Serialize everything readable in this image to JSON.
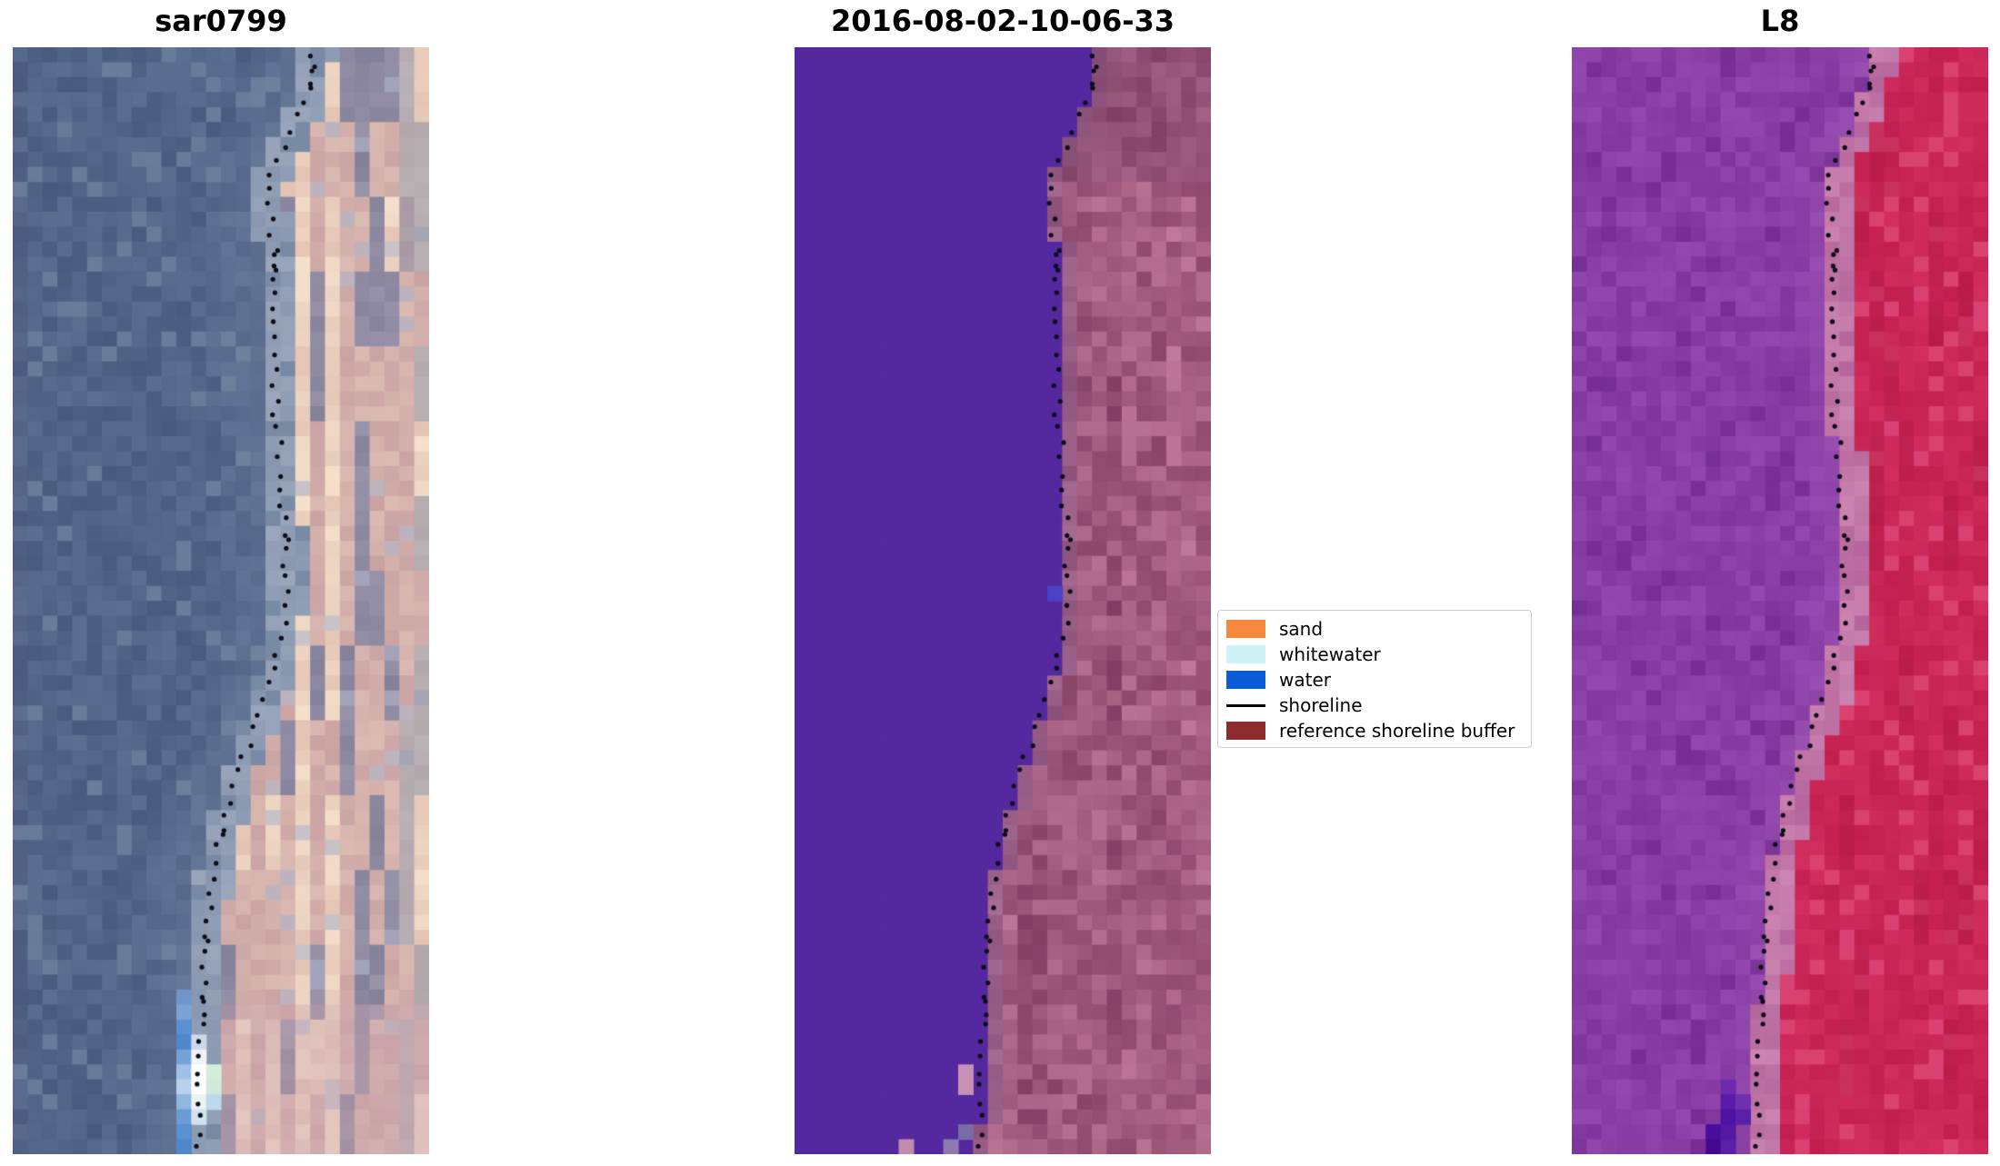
{
  "chart_data": {
    "type": "image-grid",
    "title": "",
    "figure_background": "#ffffff",
    "grid": {
      "cols": 28,
      "rows": 74
    },
    "panels": [
      {
        "title": "sar0799",
        "kind": "sar",
        "seed": 7,
        "palette": {
          "water_dark": "#49597f",
          "water_light": "#5e7193",
          "water_glint": "#74879f",
          "near_shore": "#8494ac",
          "band_a": "#8393ac",
          "band_b": "#9aa6bb",
          "band_dark": "#6d7f9b",
          "gray_a": "#83809a",
          "gray_b": "#9b95ab",
          "rose_a": "#c9a2a2",
          "rose_b": "#dcbcb2",
          "cream_a": "#e3c3b4",
          "cream_b": "#f6e2cd",
          "periwinkle": "#a8aec6",
          "edge_gray": "#8a8fa3",
          "bottom_pink": "#c9a3ae"
        },
        "extras": [
          {
            "r": 63,
            "dc": -2,
            "color": "#6f95c9"
          },
          {
            "r": 64,
            "dc": -2,
            "color": "#7da3d4"
          },
          {
            "r": 65,
            "dc": -2,
            "color": "#5c90d1"
          },
          {
            "r": 66,
            "dc": -2,
            "color": "#4f87cd"
          },
          {
            "r": 66,
            "dc": -1,
            "color": "#cdd9e8"
          },
          {
            "r": 67,
            "dc": -2,
            "color": "#75a1d9"
          },
          {
            "r": 67,
            "dc": -1,
            "color": "#eef3f6"
          },
          {
            "r": 68,
            "dc": -2,
            "color": "#a0c1e5"
          },
          {
            "r": 68,
            "dc": -1,
            "color": "#ffffff"
          },
          {
            "r": 68,
            "dc": 0,
            "color": "#d3edd9"
          },
          {
            "r": 69,
            "dc": -2,
            "color": "#b8d0ea"
          },
          {
            "r": 69,
            "dc": -1,
            "color": "#ffffff"
          },
          {
            "r": 69,
            "dc": 0,
            "color": "#cfe9dd"
          },
          {
            "r": 70,
            "dc": -2,
            "color": "#90b5df"
          },
          {
            "r": 70,
            "dc": -1,
            "color": "#e9f3ef"
          },
          {
            "r": 70,
            "dc": 0,
            "color": "#bdd9e9"
          },
          {
            "r": 71,
            "dc": -2,
            "color": "#6b9bd3"
          },
          {
            "r": 71,
            "dc": -1,
            "color": "#d0e1ef"
          },
          {
            "r": 72,
            "dc": -1,
            "color": "#5b90d1"
          },
          {
            "r": 73,
            "dc": -1,
            "color": "#4f87cd"
          }
        ]
      },
      {
        "title": "2016-08-02-10-06-33",
        "kind": "classified",
        "seed": 11,
        "palette": {
          "water_flat": "#54289F",
          "land_dark": "#7e3a5e",
          "land_light": "#c47d9e",
          "shore_col": "#8f6292",
          "top_dark": "#6e3a60",
          "edge_dark": "#8a4168"
        },
        "extras": [
          {
            "r": 36,
            "dc": -1,
            "color": "#4b42c8"
          },
          {
            "r": 68,
            "dc": -2,
            "color": "#c792b4"
          },
          {
            "r": 69,
            "dc": -2,
            "color": "#c792b4"
          },
          {
            "r": 72,
            "dc": -1,
            "color": "#7a6aa8"
          },
          {
            "r": 73,
            "dc": -5,
            "color": "#bd8cae"
          },
          {
            "r": 73,
            "dc": -2,
            "color": "#8d7bb0"
          }
        ]
      },
      {
        "title": "L8",
        "kind": "l8",
        "seed": 19,
        "palette": {
          "water_a": "#7e3399",
          "water_b": "#9348af",
          "water_bright": "#a55cb8",
          "water_deep": "#722b90",
          "trans_a": "#b5659c",
          "trans_b": "#cc85b2",
          "land_a": "#c11e4e",
          "land_b": "#d63063",
          "land_light": "#dd5480",
          "land_deep": "#b01640"
        },
        "extras": [
          {
            "r": 69,
            "dc": -3,
            "color": "#6d2ab0"
          },
          {
            "r": 70,
            "dc": -3,
            "color": "#5c1ba6"
          },
          {
            "r": 70,
            "dc": -2,
            "color": "#7030b2"
          },
          {
            "r": 71,
            "dc": -3,
            "color": "#4f12a2"
          },
          {
            "r": 71,
            "dc": -2,
            "color": "#5c1fa8"
          },
          {
            "r": 72,
            "dc": -3,
            "color": "#480e9e"
          },
          {
            "r": 72,
            "dc": -2,
            "color": "#5518a4"
          },
          {
            "r": 73,
            "dc": -3,
            "color": "#42098f"
          },
          {
            "r": 73,
            "dc": -2,
            "color": "#5c1fa8"
          }
        ]
      }
    ],
    "shoreline": {
      "color": "#0e0e18",
      "dot_radius": 2.6,
      "path": [
        [
          0.0,
          0.725
        ],
        [
          0.025,
          0.715
        ],
        [
          0.05,
          0.7
        ],
        [
          0.075,
          0.672
        ],
        [
          0.1,
          0.64
        ],
        [
          0.12,
          0.606
        ],
        [
          0.145,
          0.612
        ],
        [
          0.17,
          0.625
        ],
        [
          0.2,
          0.632
        ],
        [
          0.24,
          0.627
        ],
        [
          0.28,
          0.625
        ],
        [
          0.32,
          0.63
        ],
        [
          0.36,
          0.638
        ],
        [
          0.4,
          0.643
        ],
        [
          0.44,
          0.652
        ],
        [
          0.48,
          0.658
        ],
        [
          0.51,
          0.655
        ],
        [
          0.54,
          0.64
        ],
        [
          0.57,
          0.622
        ],
        [
          0.6,
          0.596
        ],
        [
          0.63,
          0.566
        ],
        [
          0.66,
          0.538
        ],
        [
          0.69,
          0.514
        ],
        [
          0.72,
          0.496
        ],
        [
          0.75,
          0.482
        ],
        [
          0.78,
          0.47
        ],
        [
          0.82,
          0.463
        ],
        [
          0.86,
          0.458
        ],
        [
          0.9,
          0.455
        ],
        [
          0.94,
          0.45
        ],
        [
          1.0,
          0.442
        ]
      ]
    },
    "legend": {
      "border_color": "#cccccc",
      "background": "#ffffff",
      "items": [
        {
          "label": "sand",
          "swatch": "rect",
          "color": "#F6873C"
        },
        {
          "label": "whitewater",
          "swatch": "rect",
          "color": "#CEF3F6"
        },
        {
          "label": "water",
          "swatch": "rect",
          "color": "#0B5AD6"
        },
        {
          "label": "shoreline",
          "swatch": "line",
          "color": "#000000"
        },
        {
          "label": "reference shoreline buffer",
          "swatch": "rect",
          "color": "#8C2C2C"
        }
      ]
    }
  }
}
